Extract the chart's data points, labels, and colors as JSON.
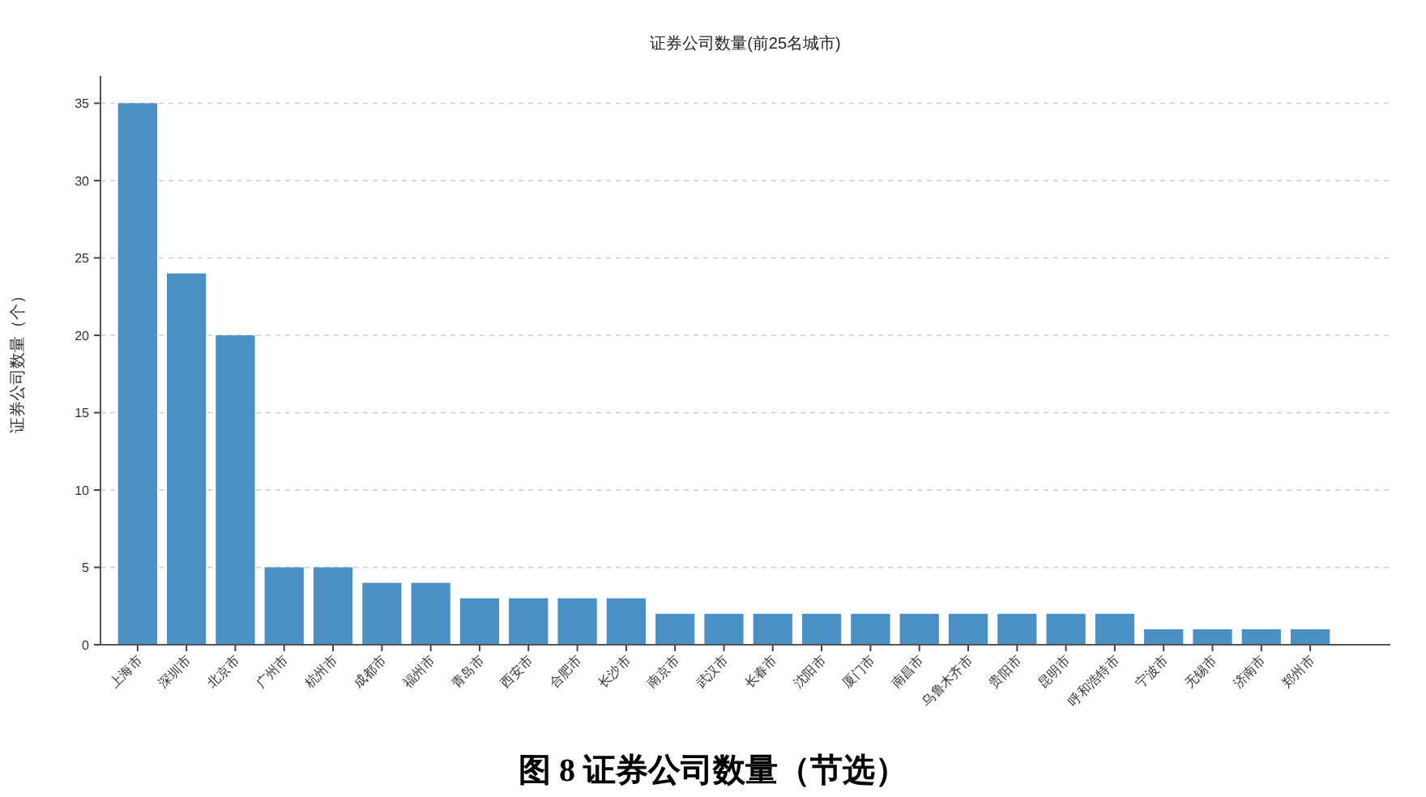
{
  "chart_data": {
    "type": "bar",
    "title": "证券公司数量(前25名城市)",
    "ylabel": "证券公司数量（个）",
    "categories": [
      "上海市",
      "深圳市",
      "北京市",
      "广州市",
      "杭州市",
      "成都市",
      "福州市",
      "青岛市",
      "西安市",
      "合肥市",
      "长沙市",
      "南京市",
      "武汉市",
      "长春市",
      "沈阳市",
      "厦门市",
      "南昌市",
      "乌鲁木齐市",
      "贵阳市",
      "昆明市",
      "呼和浩特市",
      "宁波市",
      "无锡市",
      "济南市",
      "郑州市"
    ],
    "values": [
      35,
      24,
      20,
      5,
      5,
      4,
      4,
      3,
      3,
      3,
      3,
      2,
      2,
      2,
      2,
      2,
      2,
      2,
      2,
      2,
      2,
      1,
      1,
      1,
      1
    ],
    "color": "#4a90c4",
    "ylim": [
      0,
      36.75
    ],
    "yticks": [
      0,
      5,
      10,
      15,
      20,
      25,
      30,
      35
    ],
    "grid": "y",
    "annotations": [
      "图 8  证券公司数量（节选）"
    ]
  }
}
